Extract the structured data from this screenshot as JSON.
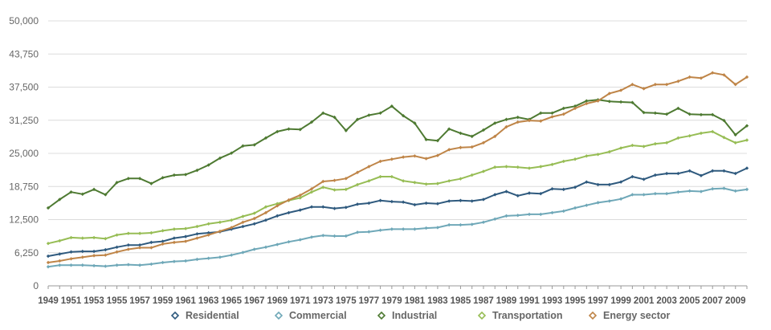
{
  "chart_data": {
    "type": "line",
    "title": "",
    "xlabel": "",
    "ylabel": "",
    "ylim": [
      0,
      50000
    ],
    "yticks": [
      "0",
      "6,250",
      "12,500",
      "18,750",
      "25,000",
      "31,250",
      "37,500",
      "43,750",
      "50,000"
    ],
    "ytick_values": [
      0,
      6250,
      12500,
      18750,
      25000,
      31250,
      37500,
      43750,
      50000
    ],
    "xticks": [
      "1949",
      "1951",
      "1953",
      "1955",
      "1957",
      "1959",
      "1961",
      "1963",
      "1965",
      "1967",
      "1969",
      "1971",
      "1973",
      "1975",
      "1977",
      "1979",
      "1981",
      "1983",
      "1985",
      "1987",
      "1989",
      "1991",
      "1993",
      "1995",
      "1997",
      "1999",
      "2001",
      "2003",
      "2005",
      "2007",
      "2009"
    ],
    "x_start": 1949,
    "x_end": 2010,
    "grid": "horizontal",
    "legend_placement": "bottom",
    "series": [
      {
        "name": "Residential",
        "color": "#2f5a7e",
        "values": [
          5600,
          6000,
          6400,
          6500,
          6500,
          6800,
          7300,
          7700,
          7700,
          8200,
          8400,
          9000,
          9300,
          9800,
          10000,
          10200,
          10700,
          11200,
          11700,
          12400,
          13200,
          13800,
          14300,
          14900,
          14900,
          14600,
          14800,
          15400,
          15600,
          16100,
          15900,
          15800,
          15300,
          15600,
          15500,
          16000,
          16100,
          16000,
          16300,
          17200,
          17800,
          17000,
          17500,
          17400,
          18300,
          18200,
          18600,
          19600,
          19100,
          19100,
          19600,
          20600,
          20100,
          20900,
          21200,
          21200,
          21700,
          20800,
          21700,
          21700,
          21200,
          22200
        ]
      },
      {
        "name": "Commercial",
        "color": "#6fa8b8",
        "values": [
          3600,
          3900,
          3900,
          3900,
          3800,
          3700,
          3900,
          4000,
          3900,
          4100,
          4400,
          4600,
          4700,
          5000,
          5200,
          5400,
          5800,
          6300,
          6900,
          7300,
          7800,
          8300,
          8700,
          9200,
          9500,
          9400,
          9400,
          10100,
          10200,
          10500,
          10700,
          10700,
          10700,
          10900,
          11000,
          11500,
          11500,
          11600,
          12000,
          12600,
          13200,
          13300,
          13500,
          13500,
          13800,
          14100,
          14700,
          15200,
          15700,
          16000,
          16400,
          17200,
          17200,
          17400,
          17400,
          17700,
          17900,
          17800,
          18300,
          18400,
          17900,
          18200
        ]
      },
      {
        "name": "Industrial",
        "color": "#4e7a32",
        "values": [
          14700,
          16300,
          17700,
          17300,
          18200,
          17200,
          19500,
          20250,
          20250,
          19300,
          20400,
          20900,
          21000,
          21800,
          22800,
          24100,
          25050,
          26400,
          26600,
          27900,
          29100,
          29600,
          29500,
          30900,
          32600,
          31800,
          29300,
          31400,
          32200,
          32600,
          33900,
          32100,
          30700,
          27600,
          27400,
          29600,
          28800,
          28200,
          29400,
          30700,
          31400,
          31800,
          31400,
          32600,
          32600,
          33500,
          33900,
          34900,
          35100,
          34800,
          34700,
          34600,
          32700,
          32600,
          32400,
          33500,
          32400,
          32300,
          32300,
          31200,
          28500,
          30200
        ]
      },
      {
        "name": "Transportation",
        "color": "#97bd55",
        "values": [
          8000,
          8500,
          9100,
          9000,
          9100,
          8900,
          9600,
          9900,
          9900,
          10000,
          10400,
          10700,
          10800,
          11200,
          11700,
          12000,
          12400,
          13100,
          13700,
          14900,
          15500,
          16100,
          16600,
          17700,
          18600,
          18100,
          18200,
          19100,
          19800,
          20600,
          20600,
          19800,
          19500,
          19200,
          19300,
          19800,
          20200,
          20900,
          21600,
          22400,
          22500,
          22400,
          22200,
          22500,
          22900,
          23500,
          23900,
          24500,
          24800,
          25300,
          26000,
          26500,
          26300,
          26800,
          27000,
          27900,
          28300,
          28800,
          29100,
          28000,
          27000,
          27500
        ]
      },
      {
        "name": "Energy sector",
        "color": "#bf8548",
        "values": [
          4400,
          4700,
          5100,
          5400,
          5700,
          5800,
          6400,
          6900,
          7200,
          7200,
          7900,
          8200,
          8400,
          9000,
          9600,
          10300,
          11000,
          12000,
          12700,
          13800,
          15100,
          16200,
          17100,
          18300,
          19700,
          19900,
          20250,
          21400,
          22500,
          23500,
          23900,
          24300,
          24500,
          24000,
          24600,
          25700,
          26100,
          26200,
          27000,
          28200,
          30000,
          30900,
          31200,
          31100,
          31900,
          32400,
          33500,
          34400,
          34900,
          36300,
          36900,
          38000,
          37200,
          38000,
          38000,
          38600,
          39400,
          39200,
          40200,
          39800,
          38000,
          39400
        ]
      }
    ]
  }
}
